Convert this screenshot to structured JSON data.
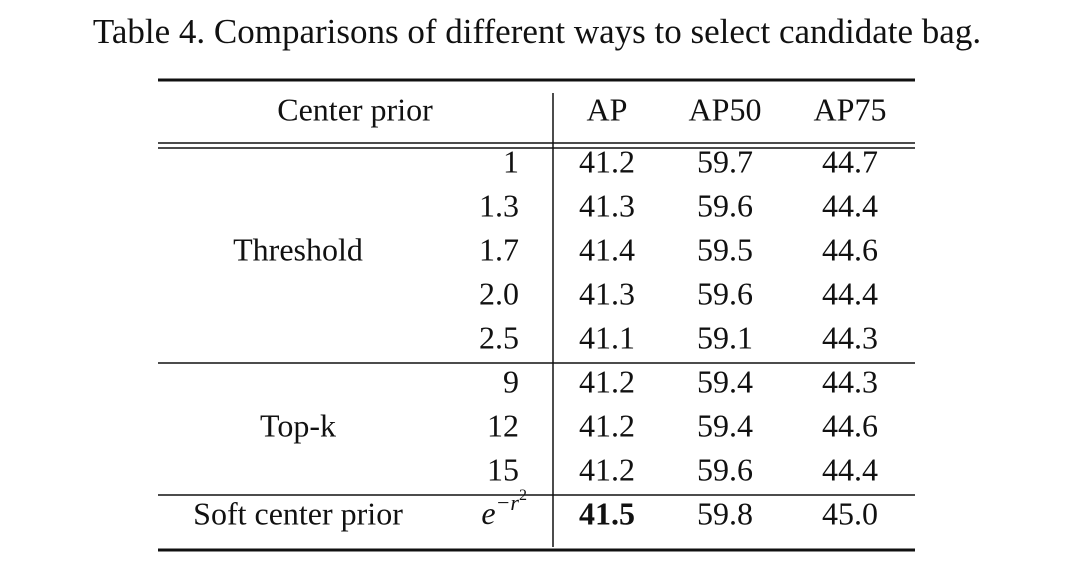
{
  "caption": "Table 4. Comparisons of different ways to select candidate bag.",
  "table": {
    "header": [
      "Center prior",
      "AP",
      "AP50",
      "AP75"
    ],
    "groups": [
      {
        "label": "Threshold",
        "rows": [
          {
            "param": "1",
            "values": [
              "41.2",
              "59.7",
              "44.7"
            ]
          },
          {
            "param": "1.3",
            "values": [
              "41.3",
              "59.6",
              "44.4"
            ]
          },
          {
            "param": "1.7",
            "values": [
              "41.4",
              "59.5",
              "44.6"
            ]
          },
          {
            "param": "2.0",
            "values": [
              "41.3",
              "59.6",
              "44.4"
            ]
          },
          {
            "param": "2.5",
            "values": [
              "41.1",
              "59.1",
              "44.3"
            ]
          }
        ]
      },
      {
        "label": "Top-k",
        "rows": [
          {
            "param": "9",
            "values": [
              "41.2",
              "59.4",
              "44.3"
            ]
          },
          {
            "param": "12",
            "values": [
              "41.2",
              "59.4",
              "44.6"
            ]
          },
          {
            "param": "15",
            "values": [
              "41.2",
              "59.6",
              "44.4"
            ]
          }
        ]
      },
      {
        "label": "Soft center prior",
        "rows": [
          {
            "param": {
              "base": "e",
              "exp": "−r",
              "exp2": "2"
            },
            "values": [
              "41.5",
              "59.8",
              "45.0"
            ],
            "bold": [
              0
            ]
          }
        ]
      }
    ]
  }
}
